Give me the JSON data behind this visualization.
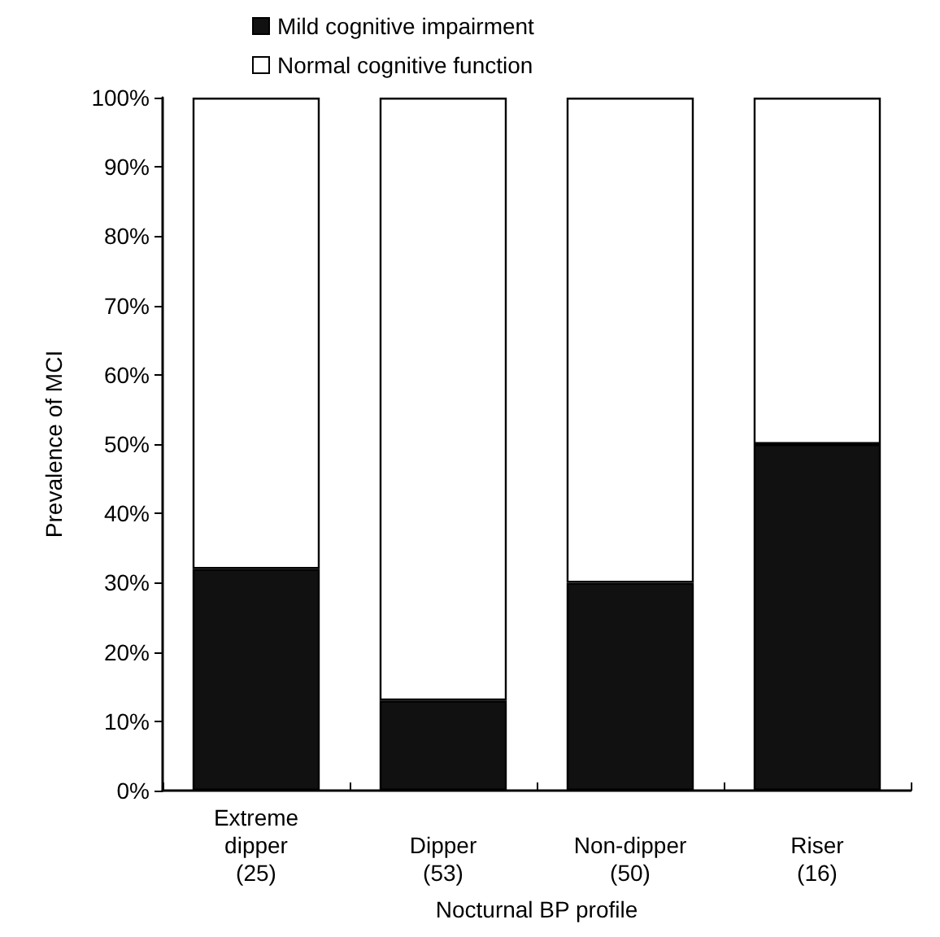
{
  "chart_data": {
    "type": "bar",
    "stacked": true,
    "xlabel": "Nocturnal BP profile",
    "ylabel": "Prevalence of MCI",
    "categories": [
      "Extreme\ndipper\n(25)",
      "Dipper\n(53)",
      "Non-dipper\n(50)",
      "Riser\n(16)"
    ],
    "series": [
      {
        "name": "Mild cognitive impairment",
        "color": "#111111",
        "values": [
          32,
          13,
          30,
          50
        ]
      },
      {
        "name": "Normal cognitive function",
        "color": "#ffffff",
        "values": [
          68,
          87,
          70,
          50
        ]
      }
    ],
    "ylim": [
      0,
      100
    ],
    "yticks": [
      {
        "value": 0,
        "label": "0%"
      },
      {
        "value": 10,
        "label": "10%"
      },
      {
        "value": 20,
        "label": "20%"
      },
      {
        "value": 30,
        "label": "30%"
      },
      {
        "value": 40,
        "label": "40%"
      },
      {
        "value": 50,
        "label": "50%"
      },
      {
        "value": 60,
        "label": "60%"
      },
      {
        "value": 70,
        "label": "70%"
      },
      {
        "value": 80,
        "label": "80%"
      },
      {
        "value": 90,
        "label": "90%"
      },
      {
        "value": 100,
        "label": "100%"
      }
    ],
    "grid": false,
    "legend": "top"
  }
}
